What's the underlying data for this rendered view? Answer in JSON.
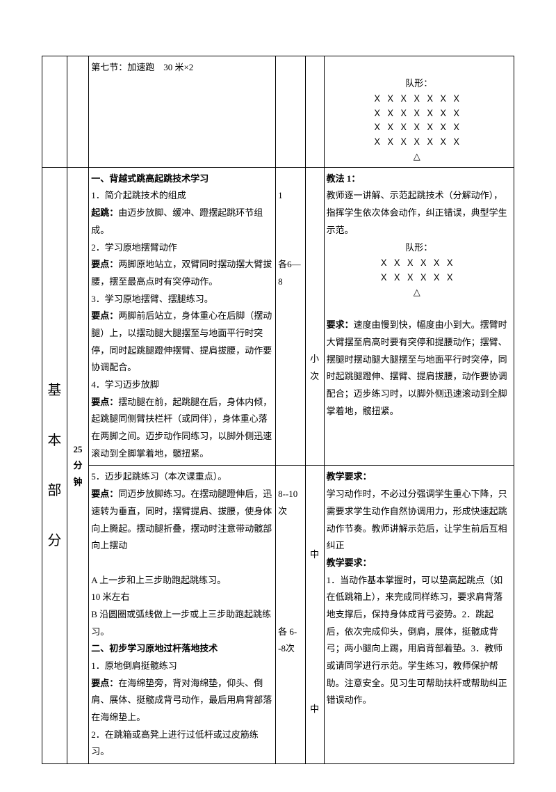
{
  "row1": {
    "content": "第七节：加速跑　30 米×2",
    "formation_label": "队形：",
    "formation_lines": [
      "ＸＸＸＸＸＸＸ",
      "ＸＸＸＸＸＸＸ",
      "ＸＸＸＸＸＸＸ",
      "ＸＸＸＸＸＸＸ",
      "△"
    ]
  },
  "section_label": "基本部分",
  "time_label": "25分钟",
  "row2": {
    "title": "一、背越式跳高起跳技术学习",
    "item1": "1．简介起跳技术的组成",
    "takeoff_label": "起跳：",
    "takeoff_text": "由迈步放脚、缓冲、蹬摆起跳环节组成。",
    "item2": "2．学习原地摆臂动作",
    "key2_label": "要点：",
    "key2_text": "两脚原地站立，双臂同时摆动摆大臂拔腰，摆至最高点时有突停动作。",
    "item3": "3．学习原地摆臂、摆腿练习。",
    "key3_label": "要点：",
    "key3_text": "两脚前后站立，身体重心在后脚（摆动腿）上，以摆动腿大腿摆至与地面平行时突停，同时起跳腿蹬伸摆臂、提肩拔腰，动作要协调配合。",
    "item4": "4．学习迈步放脚",
    "key4_label": "要点：",
    "key4_text": "摆动腿在前，起跳腿在后，身体内倾，起跳腿同侧臂扶栏杆（或同伴），身体重心落在两脚之间。迈步动作同练习，以脚外侧迅速滚动到全脚掌着地，髋扭紧。",
    "reps1": "1",
    "reps2": "各6—8",
    "intensity": "小次",
    "method_title": "教法 1：",
    "method_text": "教师逐一讲解、示范起跳技术（分解动作），指挥学生依次体会动作，纠正错误，典型学生示范。",
    "formation_label": "队形：",
    "formation_lines": [
      "ＸＸＸＸＸＸ",
      "ＸＸＸＸＸＸ",
      "△"
    ],
    "req_label": "要求：",
    "req_text": "速度由慢到快，幅度由小到大。摆臂时大臂摆至肩高时要有突停和提腰动作；摆臂、摆腿时摆动腿大腿摆至与地面平行时突停，同时起跳腿蹬伸、摆臂、提肩拔腰，动作要协调配合；迈步练习时，以脚外侧迅速滚动到全脚掌着地，髋扭紧。"
  },
  "row3": {
    "item5": "5．迈步起跳练习（本次课重点）。",
    "key5_label": "要点：",
    "key5_text": "同迈步放脚练习。在摆动腿蹬伸后，迅速转为垂直，同时，摆臂提肩、拔腰，使身体向上腾起。摆动腿折叠，摆动时注意带动髋部向上摆动",
    "itemA": "A 上一步和上三步助跑起跳练习。",
    "itemA_dist": "10 米左右",
    "itemB": "B 沿圆圈或弧线做上一步或上三步助跑起跳练习。",
    "title2": "二、初步学习原地过杆落地技术",
    "item2_1": "1．原地倒肩挺髋练习",
    "key2_1_label": "要点：",
    "key2_1_text": "在海绵垫旁，背对海绵垫，仰头、倒肩、展体、挺髋成背弓动作，最后用肩背部落在海绵垫上。",
    "item2_2": "2．在跳箱或高凳上进行过低杆或过皮筋练习。",
    "reps1": "8--10次",
    "reps2": "各 6--8次",
    "intensity1": "中",
    "intensity2": "中",
    "req1_label": "教学要求：",
    "req1_text": "学习动作时，不必过分强调学生重心下降，只需要求学生动作自然协调用力，形成快速起跳动作节奏。教师讲解示范后，让学生前后互相纠正",
    "req2_label": "教学要求：",
    "req2_text": "1．当动作基本掌握时，可以垫高起跳点（如在低跳箱上），来完成同样练习，要求肩背落地支撑后，保持身体成背弓姿势。2．跳起后，依次完成仰头，倒肩，展体，挺髋成背弓；两小腿向上踢，用肩背部着垫。3．教师或请同学进行示范。学生练习，教师保护帮助。注意安全。见习生可帮助扶杆或帮助纠正错误动作。"
  }
}
